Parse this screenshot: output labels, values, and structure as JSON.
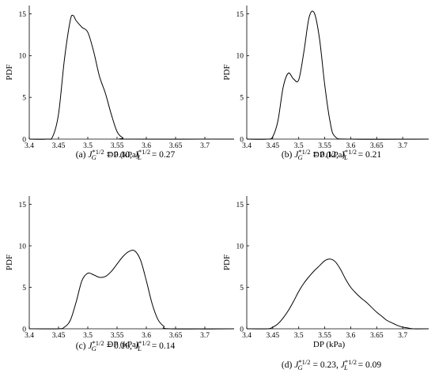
{
  "chart_data": [
    {
      "type": "line",
      "panel": "a",
      "caption": {
        "prefix": "(a)",
        "jg": "0.10",
        "jl": "0.27"
      },
      "xlabel": "DP (kPa)",
      "ylabel": "PDF",
      "xlim": [
        3.4,
        3.75
      ],
      "ylim": [
        0,
        16
      ],
      "xticks": [
        "3.4",
        "3.45",
        "3.5",
        "3.55",
        "3.6",
        "3.65",
        "3.7"
      ],
      "yticks": [
        "0",
        "5",
        "10",
        "15"
      ],
      "x": [
        3.4,
        3.43,
        3.44,
        3.45,
        3.46,
        3.47,
        3.475,
        3.48,
        3.49,
        3.5,
        3.51,
        3.52,
        3.53,
        3.54,
        3.55,
        3.56,
        3.57,
        3.75
      ],
      "values": [
        0,
        0,
        0.3,
        3,
        9.5,
        14.2,
        14.8,
        14.2,
        13.4,
        12.8,
        10.5,
        7.5,
        5.5,
        3,
        0.9,
        0.15,
        0,
        0
      ]
    },
    {
      "type": "line",
      "panel": "b",
      "caption": {
        "prefix": "(b)",
        "jg": "0.12",
        "jl": "0.21"
      },
      "xlabel": "DP (kPa)",
      "ylabel": "PDF",
      "xlim": [
        3.4,
        3.75
      ],
      "ylim": [
        0,
        16
      ],
      "xticks": [
        "3.4",
        "3.45",
        "3.5",
        "3.55",
        "3.6",
        "3.65",
        "3.7"
      ],
      "yticks": [
        "0",
        "5",
        "10",
        "15"
      ],
      "x": [
        3.4,
        3.44,
        3.45,
        3.46,
        3.47,
        3.48,
        3.49,
        3.5,
        3.51,
        3.52,
        3.53,
        3.54,
        3.55,
        3.56,
        3.57,
        3.6,
        3.75
      ],
      "values": [
        0,
        0,
        0.3,
        2.2,
        6.2,
        7.9,
        7.2,
        7.1,
        10.5,
        14.6,
        15.1,
        12,
        6.5,
        2.2,
        0.3,
        0,
        0
      ]
    },
    {
      "type": "line",
      "panel": "c",
      "caption": {
        "prefix": "(c)",
        "jg": "0.16",
        "jl": "0.14"
      },
      "xlabel": "DP (kPa)",
      "ylabel": "PDF",
      "xlim": [
        3.4,
        3.75
      ],
      "ylim": [
        0,
        16
      ],
      "xticks": [
        "3.4",
        "3.45",
        "3.5",
        "3.55",
        "3.6",
        "3.65",
        "3.7"
      ],
      "yticks": [
        "0",
        "5",
        "10",
        "15"
      ],
      "x": [
        3.4,
        3.45,
        3.46,
        3.47,
        3.48,
        3.49,
        3.5,
        3.51,
        3.52,
        3.53,
        3.54,
        3.55,
        3.56,
        3.57,
        3.58,
        3.59,
        3.6,
        3.61,
        3.62,
        3.63,
        3.64,
        3.75
      ],
      "values": [
        0,
        0,
        0.2,
        1,
        3.2,
        5.8,
        6.7,
        6.5,
        6.2,
        6.3,
        6.9,
        7.8,
        8.7,
        9.3,
        9.4,
        8.3,
        5.8,
        3,
        1.1,
        0.3,
        0,
        0
      ]
    },
    {
      "type": "line",
      "panel": "d",
      "caption": {
        "prefix": "(d)",
        "jg": "0.23",
        "jl": "0.09"
      },
      "xlabel": "DP (kPa)",
      "ylabel": "PDF",
      "xlim": [
        3.4,
        3.75
      ],
      "ylim": [
        0,
        16
      ],
      "xticks": [
        "3.4",
        "3.45",
        "3.5",
        "3.55",
        "3.6",
        "3.65",
        "3.7"
      ],
      "yticks": [
        "0",
        "5",
        "10",
        "15"
      ],
      "x": [
        3.4,
        3.44,
        3.45,
        3.46,
        3.47,
        3.48,
        3.49,
        3.5,
        3.51,
        3.52,
        3.53,
        3.54,
        3.55,
        3.56,
        3.57,
        3.58,
        3.59,
        3.6,
        3.61,
        3.62,
        3.63,
        3.64,
        3.65,
        3.66,
        3.67,
        3.68,
        3.69,
        3.7,
        3.71,
        3.72,
        3.75
      ],
      "values": [
        0,
        0,
        0.2,
        0.6,
        1.3,
        2.2,
        3.3,
        4.5,
        5.5,
        6.3,
        7,
        7.6,
        8.2,
        8.4,
        8.1,
        7.2,
        6,
        5,
        4.3,
        3.7,
        3.2,
        2.6,
        2,
        1.5,
        1,
        0.7,
        0.4,
        0.2,
        0.1,
        0,
        0
      ]
    }
  ]
}
